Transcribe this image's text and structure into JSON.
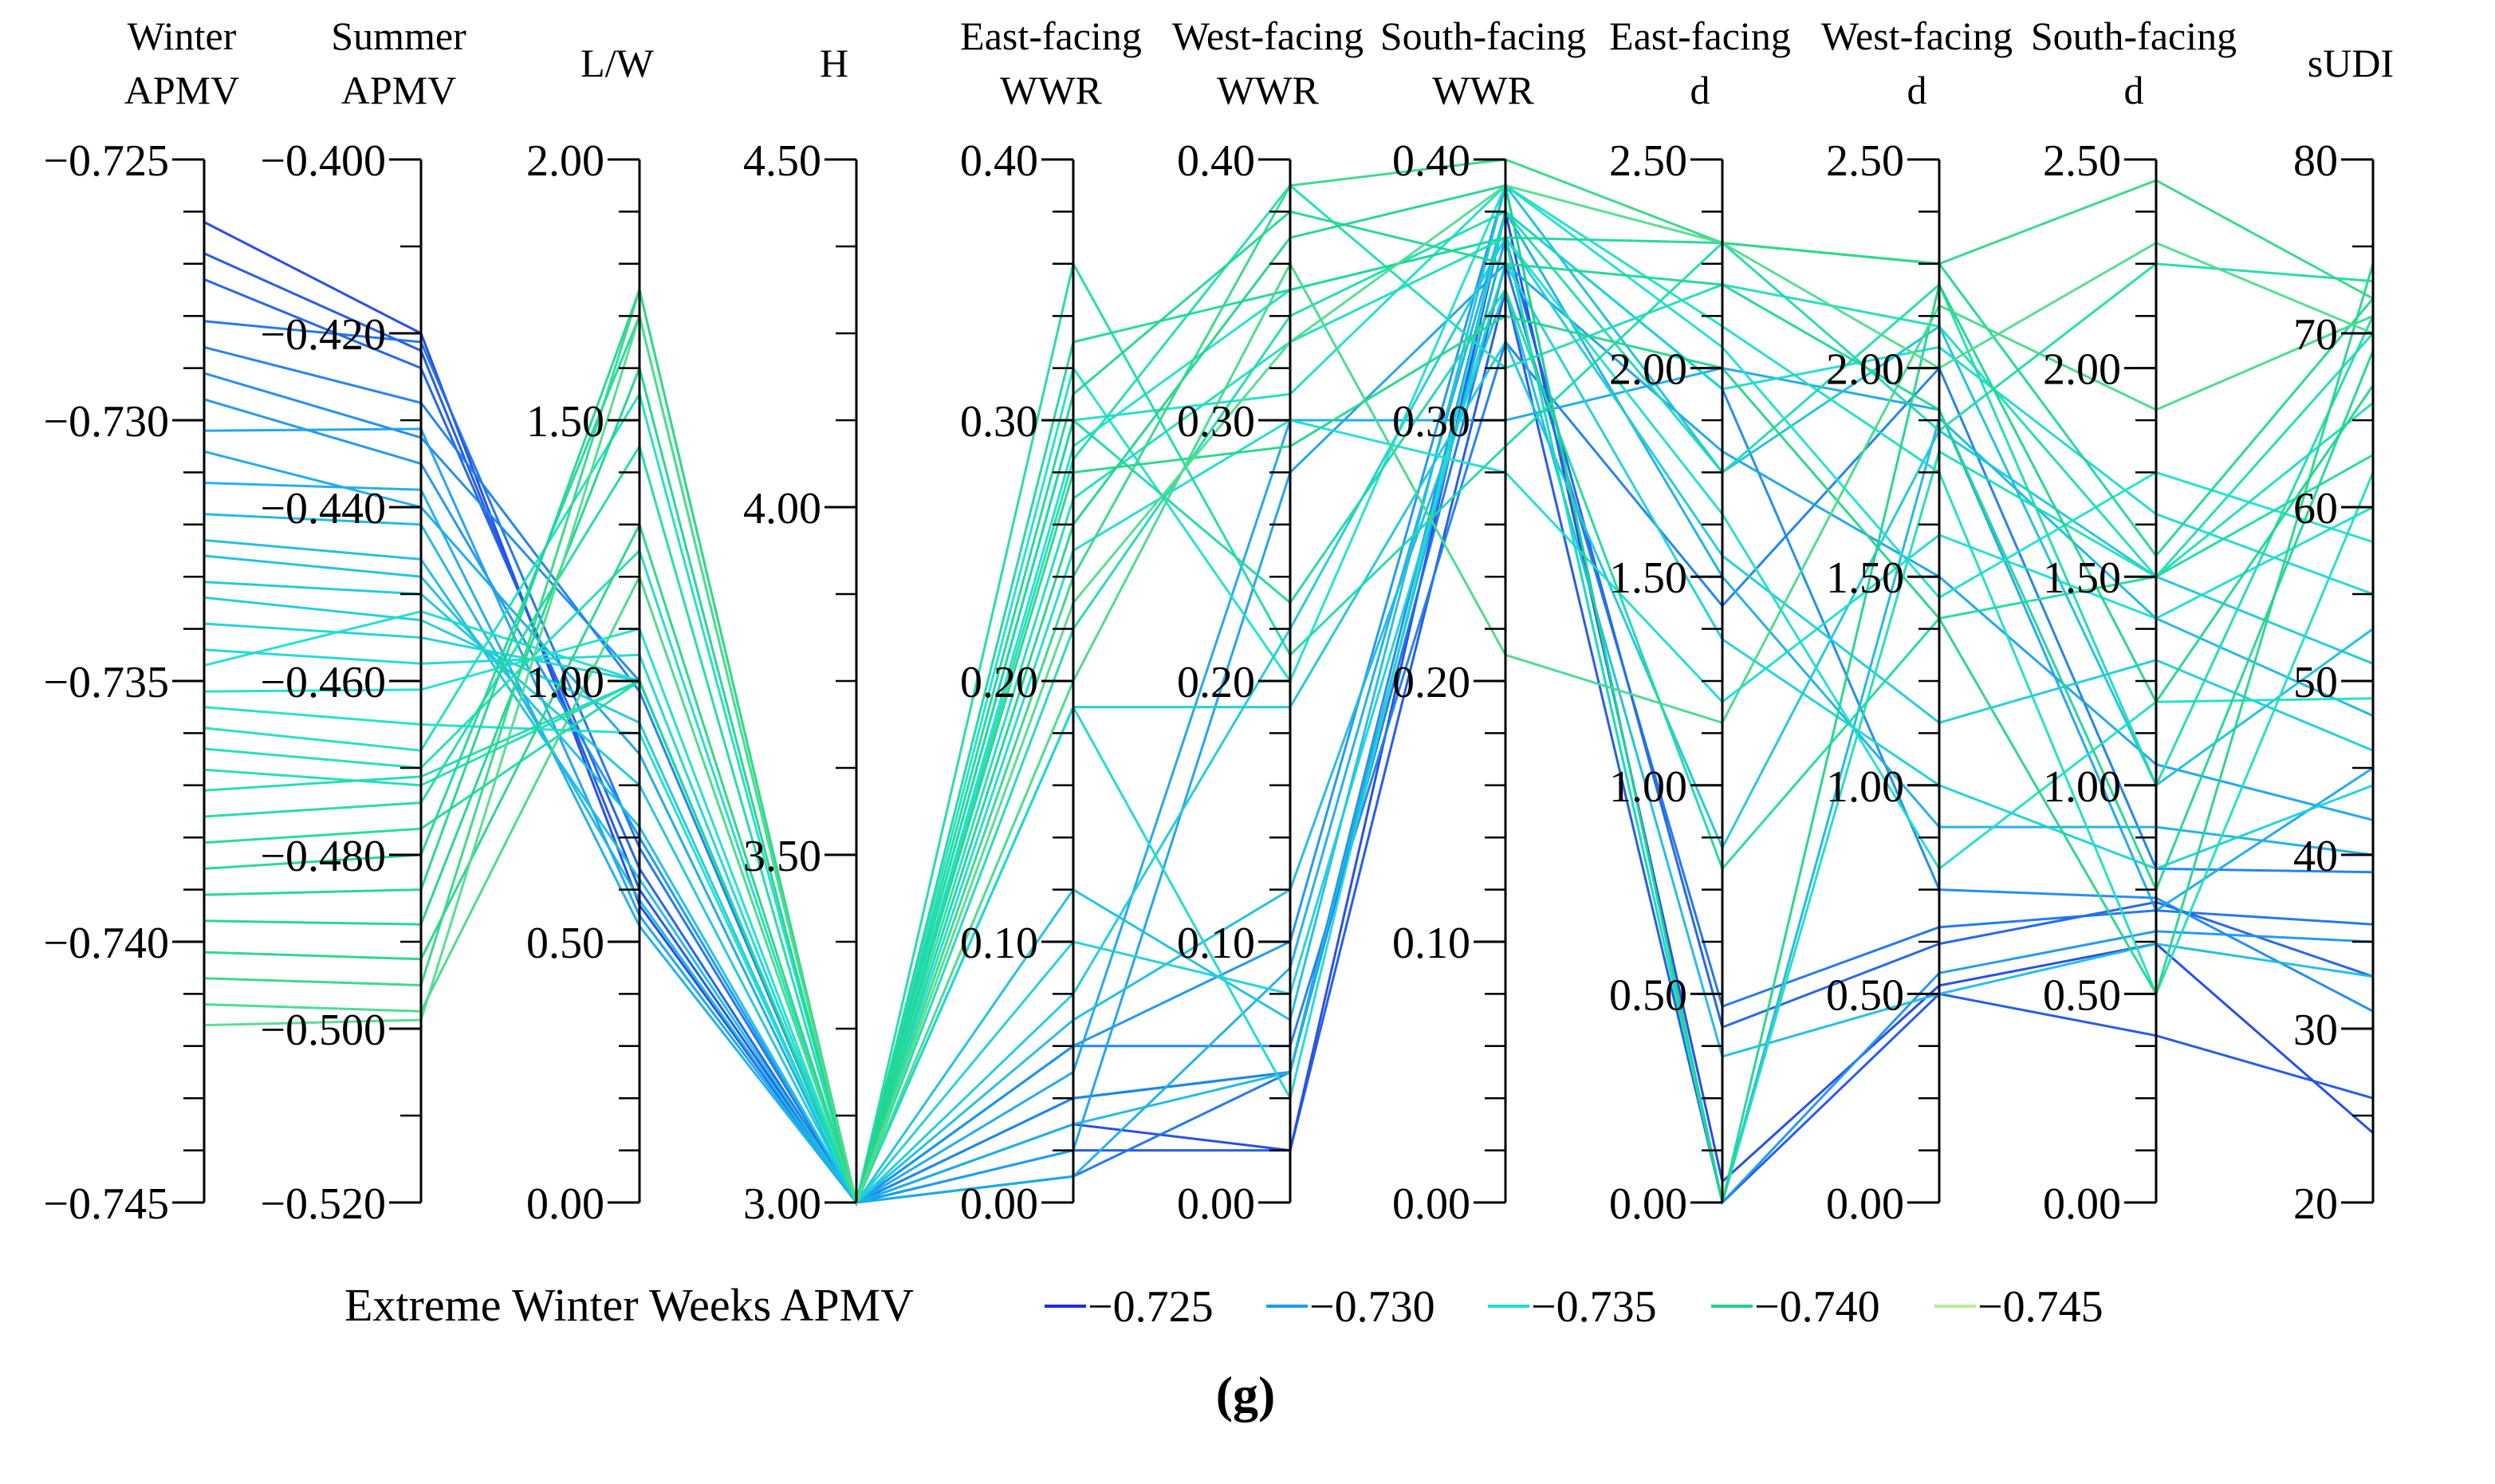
{
  "chart_data": {
    "type": "parallel_coordinates",
    "panel_label": "(g)",
    "axes": [
      {
        "id": "winter_apmv",
        "title_lines": [
          "Winter",
          "APMV"
        ],
        "range": [
          -0.745,
          -0.725
        ],
        "tick_labels": [
          "−0.725",
          "−0.730",
          "−0.735",
          "−0.740",
          "−0.745"
        ],
        "tick_values": [
          -0.725,
          -0.73,
          -0.735,
          -0.74,
          -0.745
        ],
        "minor_count": 20
      },
      {
        "id": "summer_apmv",
        "title_lines": [
          "Summer",
          "APMV"
        ],
        "range": [
          -0.52,
          -0.4
        ],
        "tick_labels": [
          "−0.400",
          "−0.420",
          "−0.440",
          "−0.460",
          "−0.480",
          "−0.500",
          "−0.520"
        ],
        "tick_values": [
          -0.4,
          -0.42,
          -0.44,
          -0.46,
          -0.48,
          -0.5,
          -0.52
        ],
        "minor_count": 12
      },
      {
        "id": "lw",
        "title_lines": [
          "L/W"
        ],
        "range": [
          0,
          2
        ],
        "tick_labels": [
          "2.00",
          "1.50",
          "1.00",
          "0.50",
          "0.00"
        ],
        "tick_values": [
          2,
          1.5,
          1,
          0.5,
          0
        ],
        "minor_count": 20
      },
      {
        "id": "h",
        "title_lines": [
          "H"
        ],
        "range": [
          3,
          4.5
        ],
        "tick_labels": [
          "4.50",
          "4.00",
          "3.50",
          "3.00"
        ],
        "tick_values": [
          4.5,
          4.0,
          3.5,
          3.0
        ],
        "minor_count": 12
      },
      {
        "id": "east_wwr",
        "title_lines": [
          "East-facing",
          "WWR"
        ],
        "range": [
          0,
          0.4
        ],
        "tick_labels": [
          "0.40",
          "0.30",
          "0.20",
          "0.10",
          "0.00"
        ],
        "tick_values": [
          0.4,
          0.3,
          0.2,
          0.1,
          0.0
        ],
        "minor_count": 20
      },
      {
        "id": "west_wwr",
        "title_lines": [
          "West-facing",
          "WWR"
        ],
        "range": [
          0,
          0.4
        ],
        "tick_labels": [
          "0.40",
          "0.30",
          "0.20",
          "0.10",
          "0.00"
        ],
        "tick_values": [
          0.4,
          0.3,
          0.2,
          0.1,
          0.0
        ],
        "minor_count": 20
      },
      {
        "id": "south_wwr",
        "title_lines": [
          "South-facing",
          "WWR"
        ],
        "range": [
          0,
          0.4
        ],
        "tick_labels": [
          "0.40",
          "0.30",
          "0.20",
          "0.10",
          "0.00"
        ],
        "tick_values": [
          0.4,
          0.3,
          0.2,
          0.1,
          0.0
        ],
        "minor_count": 20
      },
      {
        "id": "east_d",
        "title_lines": [
          "East-facing",
          "d"
        ],
        "range": [
          0,
          2.5
        ],
        "tick_labels": [
          "2.50",
          "2.00",
          "1.50",
          "1.00",
          "0.50",
          "0.00"
        ],
        "tick_values": [
          2.5,
          2.0,
          1.5,
          1.0,
          0.5,
          0.0
        ],
        "minor_count": 20
      },
      {
        "id": "west_d",
        "title_lines": [
          "West-facing",
          "d"
        ],
        "range": [
          0,
          2.5
        ],
        "tick_labels": [
          "2.50",
          "2.00",
          "1.50",
          "1.00",
          "0.50",
          "0.00"
        ],
        "tick_values": [
          2.5,
          2.0,
          1.5,
          1.0,
          0.5,
          0.0
        ],
        "minor_count": 20
      },
      {
        "id": "south_d",
        "title_lines": [
          "South-facing",
          "d"
        ],
        "range": [
          0,
          2.5
        ],
        "tick_labels": [
          "2.50",
          "2.00",
          "1.50",
          "1.00",
          "0.50",
          "0.00"
        ],
        "tick_values": [
          2.5,
          2.0,
          1.5,
          1.0,
          0.5,
          0.0
        ],
        "minor_count": 20
      },
      {
        "id": "sudi",
        "title_lines": [
          "sUDI"
        ],
        "range": [
          20,
          80
        ],
        "tick_labels": [
          "80",
          "70",
          "60",
          "50",
          "40",
          "30",
          "20"
        ],
        "tick_values": [
          80,
          70,
          60,
          50,
          40,
          30,
          20
        ],
        "minor_count": 12
      }
    ],
    "color_legend": {
      "title": "Extreme Winter Weeks APMV",
      "entries": [
        {
          "label": "−0.725",
          "value": -0.725,
          "color": "#1e2be0"
        },
        {
          "label": "−0.730",
          "value": -0.73,
          "color": "#1a9ef0"
        },
        {
          "label": "−0.735",
          "value": -0.735,
          "color": "#1ee0d0"
        },
        {
          "label": "−0.740",
          "value": -0.74,
          "color": "#20d488"
        },
        {
          "label": "−0.745",
          "value": -0.745,
          "color": "#b8ec9a"
        }
      ]
    },
    "series": [
      [
        -0.7262,
        -0.42,
        0.57,
        3.0,
        0.03,
        0.02,
        0.38,
        0.05,
        0.52,
        0.62,
        24
      ],
      [
        -0.7268,
        -0.422,
        0.6,
        3.0,
        0.02,
        0.02,
        0.35,
        0.0,
        0.5,
        0.4,
        26
      ],
      [
        -0.7273,
        -0.424,
        0.64,
        3.0,
        0.04,
        0.05,
        0.37,
        0.42,
        0.62,
        0.72,
        33
      ],
      [
        -0.7281,
        -0.421,
        0.68,
        3.0,
        0.01,
        0.05,
        0.36,
        0.47,
        0.66,
        0.7,
        36
      ],
      [
        -0.7286,
        -0.428,
        0.98,
        3.0,
        0.06,
        0.06,
        0.33,
        1.43,
        2.0,
        0.8,
        39
      ],
      [
        -0.7291,
        -0.432,
        1.0,
        3.0,
        0.04,
        0.05,
        0.38,
        1.95,
        0.75,
        0.73,
        31
      ],
      [
        -0.7296,
        -0.435,
        0.7,
        3.0,
        0.06,
        0.1,
        0.39,
        0.0,
        0.55,
        0.65,
        35
      ],
      [
        -0.7302,
        -0.431,
        0.55,
        3.0,
        0.02,
        0.28,
        0.36,
        1.8,
        1.5,
        1.05,
        42
      ],
      [
        -0.7306,
        -0.44,
        0.86,
        3.0,
        0.05,
        0.3,
        0.3,
        2.0,
        1.9,
        0.7,
        45
      ],
      [
        -0.7312,
        -0.438,
        0.53,
        3.0,
        0.01,
        0.09,
        0.38,
        1.5,
        0.9,
        0.9,
        40
      ],
      [
        -0.7318,
        -0.442,
        0.58,
        3.0,
        0.03,
        0.05,
        0.37,
        0.0,
        1.88,
        1.4,
        48
      ],
      [
        -0.7323,
        -0.446,
        0.62,
        3.0,
        0.07,
        0.12,
        0.35,
        0.35,
        0.5,
        0.62,
        33
      ],
      [
        -0.7326,
        -0.448,
        0.72,
        3.0,
        0.12,
        0.07,
        0.39,
        1.75,
        2.1,
        1.0,
        53
      ],
      [
        -0.7331,
        -0.45,
        0.8,
        3.0,
        0.19,
        0.19,
        0.33,
        0.85,
        1.85,
        1.5,
        51
      ],
      [
        -0.7334,
        -0.453,
        0.92,
        3.0,
        0.08,
        0.22,
        0.37,
        1.55,
        1.15,
        1.3,
        46
      ],
      [
        -0.7339,
        -0.455,
        1.0,
        3.0,
        0.1,
        0.08,
        0.36,
        1.35,
        1.0,
        0.8,
        44
      ],
      [
        -0.7344,
        -0.458,
        1.05,
        3.0,
        0.19,
        0.04,
        0.38,
        1.95,
        2.05,
        1.65,
        55
      ],
      [
        -0.7347,
        -0.452,
        1.0,
        3.0,
        0.25,
        0.3,
        0.28,
        1.2,
        1.6,
        1.4,
        60
      ],
      [
        -0.7352,
        -0.461,
        1.1,
        3.0,
        0.32,
        0.2,
        0.39,
        2.05,
        1.45,
        1.75,
        58
      ],
      [
        -0.7355,
        -0.465,
        0.9,
        3.0,
        0.29,
        0.35,
        0.37,
        1.65,
        0.8,
        1.2,
        49
      ],
      [
        -0.7359,
        -0.468,
        1.55,
        3.0,
        0.3,
        0.31,
        0.39,
        2.1,
        1.75,
        0.5,
        62
      ],
      [
        -0.7363,
        -0.47,
        1.25,
        3.0,
        0.27,
        0.33,
        0.37,
        0.0,
        1.8,
        1.5,
        66
      ],
      [
        -0.7367,
        -0.472,
        1.0,
        3.0,
        0.285,
        0.39,
        0.32,
        2.2,
        2.1,
        1.5,
        70
      ],
      [
        -0.7371,
        -0.471,
        1.0,
        3.0,
        0.22,
        0.34,
        0.38,
        1.75,
        2.2,
        1.0,
        71
      ],
      [
        -0.7376,
        -0.474,
        1.45,
        3.0,
        0.36,
        0.21,
        0.29,
        2.3,
        1.85,
        2.25,
        73
      ],
      [
        -0.7381,
        -0.477,
        1.0,
        3.0,
        0.3,
        0.23,
        0.35,
        0.8,
        1.4,
        1.5,
        63
      ],
      [
        -0.7386,
        -0.48,
        1.7,
        3.0,
        0.33,
        0.35,
        0.37,
        2.3,
        2.25,
        1.55,
        72
      ],
      [
        -0.7391,
        -0.484,
        1.75,
        3.0,
        0.31,
        0.38,
        0.36,
        2.2,
        1.9,
        0.75,
        69
      ],
      [
        -0.7396,
        -0.488,
        1.6,
        3.0,
        0.26,
        0.37,
        0.39,
        0.0,
        2.2,
        1.2,
        67
      ],
      [
        -0.7402,
        -0.492,
        1.3,
        3.0,
        0.28,
        0.29,
        0.34,
        2.0,
        1.4,
        0.5,
        74
      ],
      [
        -0.7407,
        -0.495,
        1.75,
        3.0,
        0.24,
        0.39,
        0.4,
        2.3,
        2.25,
        2.45,
        72
      ],
      [
        -0.7412,
        -0.498,
        1.2,
        3.0,
        0.2,
        0.36,
        0.21,
        1.15,
        2.15,
        1.9,
        71
      ],
      [
        -0.7416,
        -0.499,
        1.7,
        3.0,
        0.23,
        0.33,
        0.39,
        2.3,
        2.0,
        2.3,
        70
      ]
    ]
  }
}
